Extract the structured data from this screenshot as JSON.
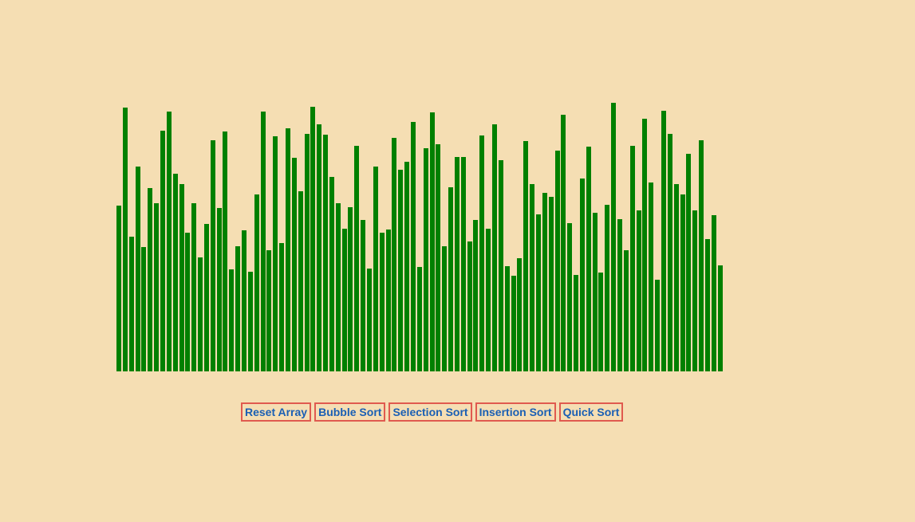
{
  "colors": {
    "background": "#f5deb3",
    "bar": "#008000",
    "button_border": "#e05a4f",
    "button_text": "#1a5fb4"
  },
  "array": {
    "values": [
      208,
      331,
      169,
      257,
      156,
      230,
      211,
      302,
      326,
      248,
      235,
      174,
      211,
      143,
      185,
      290,
      205,
      301,
      128,
      157,
      177,
      125,
      222,
      326,
      152,
      295,
      161,
      305,
      268,
      226,
      298,
      332,
      310,
      297,
      244,
      211,
      179,
      206,
      283,
      190,
      129,
      257,
      174,
      178,
      293,
      253,
      263,
      313,
      131,
      280,
      325,
      285,
      157,
      231,
      269,
      269,
      163,
      190,
      296,
      179,
      310,
      265,
      132,
      120,
      142,
      289,
      235,
      197,
      224,
      219,
      277,
      322,
      186,
      121,
      242,
      282,
      199,
      124,
      209,
      337,
      191,
      152,
      283,
      202,
      317,
      237,
      115,
      327,
      298,
      235,
      222,
      273,
      202,
      290,
      166,
      196,
      133
    ]
  },
  "controls": {
    "reset_label": "Reset Array",
    "bubble_label": "Bubble Sort",
    "selection_label": "Selection Sort",
    "insertion_label": "Insertion Sort",
    "quick_label": "Quick Sort"
  }
}
